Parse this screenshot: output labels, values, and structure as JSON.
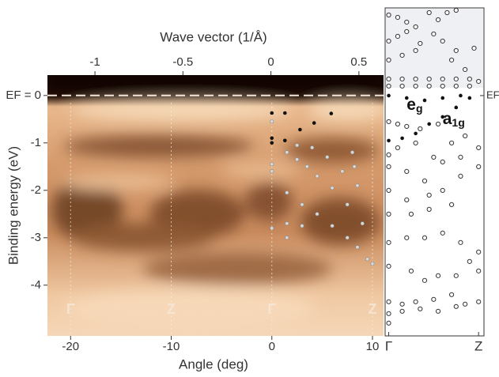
{
  "chart_data": [
    {
      "type": "scatter",
      "xlabel": "Angle (deg)",
      "x2label": "Wave vector (1/Å)",
      "ylabel": "Binding energy (eV)",
      "xlim": [
        -22.3,
        11.1
      ],
      "xticks": [
        -20,
        -10,
        0,
        10
      ],
      "x2lim": [
        -1.27,
        0.64
      ],
      "x2ticks": [
        -1,
        -0.5,
        0,
        0.5
      ],
      "ylim": [
        -5.07,
        0.43
      ],
      "yticks": [
        {
          "value": 0,
          "label": "EF = 0"
        },
        -1,
        -2,
        -3,
        -4
      ],
      "fermi_line": true,
      "point_labels": [
        {
          "x": -20,
          "text": "Γ"
        },
        {
          "x": -10,
          "text": "Z"
        },
        {
          "x": 0,
          "text": "Γ"
        },
        {
          "x": 10,
          "text": "Z"
        }
      ],
      "series": [
        {
          "color": "#111111",
          "marker": "filled",
          "x": [
            0,
            1.3,
            0,
            1.3,
            2.8,
            4.2,
            5.9,
            0
          ],
          "values": [
            -0.37,
            -0.37,
            -0.9,
            -0.95,
            -0.72,
            -0.58,
            -0.38,
            -1.0
          ]
        },
        {
          "color": "#d8d8d8",
          "marker": "light",
          "x": [
            0,
            0,
            0,
            0,
            1.5,
            2.5,
            3.5,
            4.5,
            6,
            7.5,
            8.2,
            9,
            1.5,
            3,
            4.5,
            6,
            7.5,
            1.5,
            3,
            8.5,
            9.5,
            2.5,
            4,
            5.5,
            7,
            8.5,
            10,
            1.5,
            8
          ],
          "values": [
            -0.55,
            -1.6,
            -2.8,
            -1.45,
            -1.2,
            -1.35,
            -1.5,
            -1.7,
            -1.95,
            -2.3,
            -1.5,
            -2.7,
            -2.05,
            -2.3,
            -2.5,
            -2.75,
            -3.0,
            -2.7,
            -2.75,
            -3.2,
            -3.45,
            -1.05,
            -1.1,
            -1.3,
            -1.6,
            -1.9,
            -3.55,
            -3.0,
            -1.2
          ]
        }
      ]
    },
    {
      "type": "scatter",
      "xlim": [
        -0.04,
        1.06
      ],
      "xticks": [
        {
          "value": 0,
          "label": "Γ"
        },
        {
          "value": 1,
          "label": "Z"
        }
      ],
      "ylim": [
        -5.07,
        1.85
      ],
      "fermi_label": {
        "value": 0,
        "label": "EF"
      },
      "annotations": [
        {
          "text": "e",
          "sub": "g",
          "x": 0.2,
          "y": -0.2
        },
        {
          "text": "a",
          "sub": "1g",
          "x": 0.6,
          "y": -0.5
        }
      ],
      "series": [
        {
          "color": "#333333",
          "marker": "open",
          "x": [
            0,
            0.1,
            0.2,
            0.3,
            0.45,
            0.55,
            0.65,
            0.75,
            0,
            0.1,
            0.2,
            0.35,
            0.5,
            0.6,
            0.75,
            0.95,
            0,
            0.15,
            0.3,
            0.7,
            0.85,
            0,
            0.15,
            0.3,
            0.45,
            0.6,
            0.75,
            0.9,
            1,
            0,
            0.15,
            0.3,
            0.45,
            0.6,
            0.75,
            0.9,
            0,
            0.1,
            0.2,
            0.35,
            0.55,
            0,
            0.1,
            0.3,
            0.5,
            0.7,
            0.85,
            1,
            0,
            0.2,
            0.4,
            0.6,
            0.8,
            1,
            0,
            0.2,
            0.45,
            0.6,
            0.8,
            0,
            0.25,
            0.45,
            0.7,
            0,
            0.2,
            0.4,
            0.6,
            0.8,
            1,
            0,
            0.25,
            0.4,
            0.55,
            0.75,
            0.9,
            1,
            0,
            0.15,
            0.3,
            0.5,
            0.7,
            0.85,
            1,
            0,
            0.15,
            0.35,
            0.55,
            0.75,
            0
          ],
          "values": [
            1.7,
            1.65,
            1.55,
            1.45,
            1.75,
            1.6,
            1.75,
            1.8,
            1.15,
            1.25,
            1.35,
            1.1,
            1.3,
            1.15,
            0.95,
            1.0,
            0.75,
            0.85,
            0.95,
            0.75,
            0.55,
            0.35,
            0.35,
            0.35,
            0.35,
            0.35,
            0.35,
            0.35,
            0.3,
            0.2,
            0.2,
            0.2,
            0.2,
            0.2,
            0.2,
            0.2,
            -0.55,
            -0.6,
            -0.65,
            -0.7,
            -0.6,
            -1.25,
            -1.1,
            -1.0,
            -1.3,
            -1.0,
            -0.85,
            -1.1,
            -1.5,
            -1.6,
            -1.8,
            -1.4,
            -1.3,
            -1.5,
            -2.0,
            -2.2,
            -2.1,
            -2.0,
            -1.7,
            -2.5,
            -2.5,
            -2.4,
            -2.3,
            -3.1,
            -3.0,
            -3.0,
            -2.9,
            -3.1,
            -3.3,
            -3.6,
            -3.7,
            -3.9,
            -3.8,
            -3.8,
            -3.5,
            -3.7,
            -4.35,
            -4.4,
            -4.35,
            -4.3,
            -4.2,
            -4.4,
            -4.35,
            -4.6,
            -4.55,
            -4.5,
            -4.55,
            -4.45,
            -4.8
          ]
        },
        {
          "color": "#111111",
          "marker": "filled",
          "x": [
            0,
            0.15,
            0.3,
            0.45,
            0.6,
            0.75,
            0.9,
            0,
            0.2,
            0.4,
            0.6,
            0.8
          ],
          "values": [
            -0.95,
            -0.9,
            -0.8,
            -0.6,
            -0.45,
            -0.25,
            -0.05,
            0.0,
            -0.05,
            -0.1,
            -0.05,
            0.0
          ]
        }
      ]
    }
  ]
}
